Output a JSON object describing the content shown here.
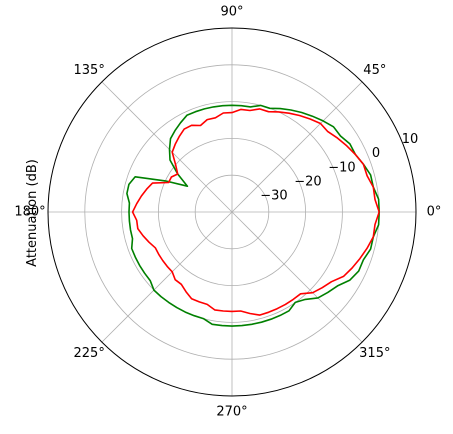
{
  "chart_data": {
    "type": "line",
    "projection": "polar",
    "ylabel": "Attenuation (dB)",
    "rlim": [
      -40,
      10
    ],
    "r_ticks": [
      {
        "value": -30,
        "label": "−30"
      },
      {
        "value": -20,
        "label": "−20"
      },
      {
        "value": -10,
        "label": "−10"
      },
      {
        "value": 0,
        "label": "0"
      },
      {
        "value": 10,
        "label": "10"
      }
    ],
    "theta_ticks": [
      {
        "value": 0,
        "label": "0°"
      },
      {
        "value": 45,
        "label": "45°"
      },
      {
        "value": 90,
        "label": "90°"
      },
      {
        "value": 135,
        "label": "135°"
      },
      {
        "value": 180,
        "label": "180°"
      },
      {
        "value": 225,
        "label": "225°"
      },
      {
        "value": 270,
        "label": "270°"
      },
      {
        "value": 315,
        "label": "315°"
      }
    ],
    "grid": true,
    "legend": false,
    "theta_deg": [
      0,
      5,
      10,
      15,
      20,
      25,
      30,
      35,
      40,
      45,
      50,
      55,
      60,
      65,
      70,
      75,
      80,
      85,
      90,
      95,
      100,
      105,
      110,
      115,
      120,
      125,
      130,
      135,
      140,
      145,
      150,
      155,
      160,
      165,
      170,
      175,
      180,
      185,
      190,
      195,
      200,
      205,
      210,
      215,
      220,
      225,
      230,
      235,
      240,
      245,
      250,
      255,
      260,
      265,
      270,
      275,
      280,
      285,
      290,
      295,
      300,
      305,
      310,
      315,
      320,
      325,
      330,
      335,
      340,
      345,
      350,
      355,
      360
    ],
    "series": [
      {
        "color": "#008000",
        "r": [
          0,
          0,
          -1,
          -1,
          -2,
          -3,
          -3,
          -4,
          -4,
          -5,
          -6,
          -7,
          -8,
          -9,
          -10,
          -10,
          -11,
          -11,
          -11,
          -11,
          -11,
          -11,
          -11,
          -11,
          -12,
          -13,
          -14,
          -16,
          -18,
          -22,
          -26,
          -20,
          -12,
          -11,
          -11,
          -12,
          -12,
          -12,
          -12,
          -12,
          -11,
          -11,
          -11,
          -11,
          -11,
          -10,
          -10,
          -10,
          -10,
          -10,
          -10,
          -10,
          -9,
          -9,
          -9,
          -9,
          -9,
          -9,
          -9,
          -9,
          -9,
          -10,
          -9,
          -7,
          -6,
          -5,
          -3,
          -2,
          -2,
          -1,
          -1,
          0,
          0
        ]
      },
      {
        "color": "#ff0000",
        "r": [
          0,
          -1,
          -1,
          -2,
          -2,
          -3,
          -4,
          -5,
          -6,
          -6,
          -7,
          -8,
          -9,
          -10,
          -11,
          -11,
          -12,
          -12,
          -13,
          -13,
          -14,
          -14,
          -15,
          -14,
          -14,
          -15,
          -16,
          -17,
          -20,
          -22,
          -21,
          -21,
          -17,
          -16,
          -15,
          -14,
          -13,
          -14,
          -14,
          -15,
          -16,
          -17,
          -17,
          -17,
          -17,
          -17,
          -16,
          -16,
          -15,
          -14,
          -14,
          -14,
          -13,
          -13,
          -13,
          -13,
          -12,
          -11,
          -11,
          -11,
          -11,
          -11,
          -11,
          -9,
          -8,
          -7,
          -5,
          -4,
          -3,
          -2,
          -1,
          -1,
          0
        ]
      }
    ]
  }
}
